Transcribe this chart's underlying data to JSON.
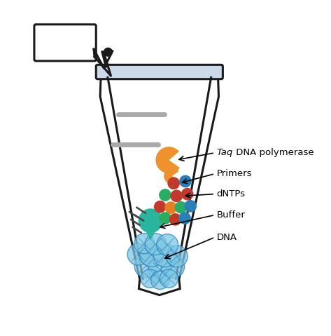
{
  "bg_color": "#ffffff",
  "tube_outline_color": "#1a1a1a",
  "tube_cap_color": "#ccd9e8",
  "gray_stripe_color": "#aaaaaa",
  "taq_color": "#f0922b",
  "dntp_colors": [
    "#c0392b",
    "#e67e22",
    "#27ae60",
    "#2980b9"
  ],
  "buffer_color": "#2ab5a0",
  "dna_color": "#7ec8e3",
  "dna_outline": "#2980b9",
  "labels": {
    "taq": " DNA polymerase",
    "taq_italic": "Taq",
    "primers": "Primers",
    "dntps": "dNTPs",
    "buffer": "Buffer",
    "dna": "DNA"
  },
  "figsize": [
    4.73,
    4.79
  ],
  "dpi": 100
}
